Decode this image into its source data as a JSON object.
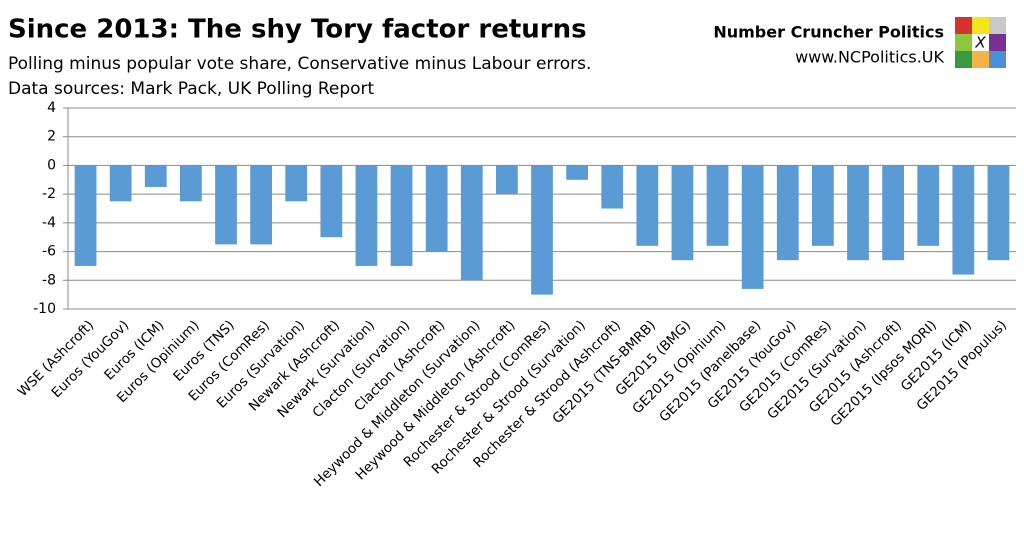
{
  "chart_data": {
    "type": "bar",
    "title": "Since 2013: The shy Tory factor returns",
    "subtitle": "Polling minus popular vote share, Conservative minus Labour errors.",
    "source": "Data sources: Mark Pack, UK Polling Report",
    "brand_name": "Number Cruncher Politics",
    "brand_url": "www.NCPolitics.UK",
    "logo_mark": "X",
    "categories": [
      "WSE (Ashcroft)",
      "Euros (YouGov)",
      "Euros (ICM)",
      "Euros (Opinium)",
      "Euros (TNS)",
      "Euros (ComRes)",
      "Euros (Survation)",
      "Newark (Ashcroft)",
      "Newark (Survation)",
      "Clacton (Survation)",
      "Clacton (Ashcroft)",
      "Heywood & Middleton (Survation)",
      "Heywood & Middleton (Ashcroft)",
      "Rochester & Strood (ComRes)",
      "Rochester & Strood (Survation)",
      "Rochester & Strood (Ashcroft)",
      "GE2015 (TNS-BMRB)",
      "GE2015 (BMG)",
      "GE2015 (Opinium)",
      "GE2015 (Panelbase)",
      "GE2015 (YouGov)",
      "GE2015 (ComRes)",
      "GE2015 (Survation)",
      "GE2015 (Ashcroft)",
      "GE2015 (Ipsos MORI)",
      "GE2015 (ICM)",
      "GE2015 (Populus)"
    ],
    "values": [
      -7,
      -2.5,
      -1.5,
      -2.5,
      -5.5,
      -5.5,
      -2.5,
      -5,
      -7,
      -7,
      -6,
      -8,
      -2,
      -9,
      -1,
      -3,
      -5.6,
      -6.6,
      -5.6,
      -8.6,
      -6.6,
      -5.6,
      -6.6,
      -6.6,
      -5.6,
      -7.6,
      -6.6
    ],
    "color": "#5b9bd5",
    "ylim": [
      -10,
      4
    ],
    "yticks": [
      -10,
      -8,
      -6,
      -4,
      -2,
      0,
      2,
      4
    ],
    "grid": true
  }
}
